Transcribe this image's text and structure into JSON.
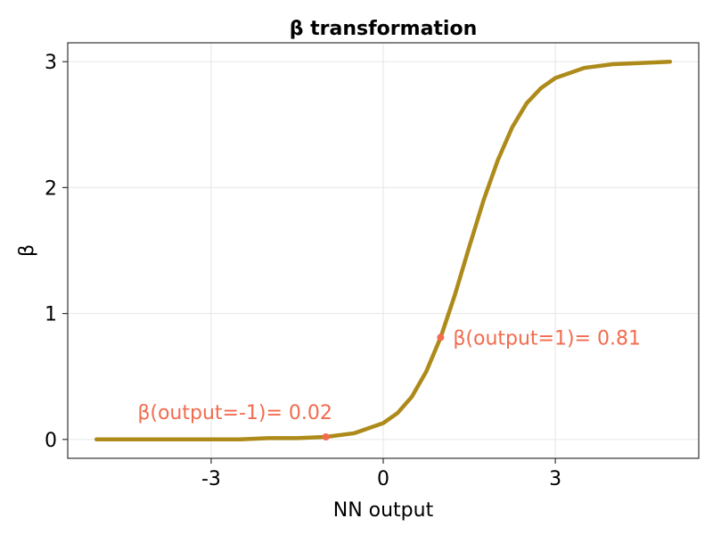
{
  "chart_data": {
    "type": "line",
    "title": "β transformation",
    "xlabel": "NN output",
    "ylabel": "β",
    "xlim": [
      -5.5,
      5.5
    ],
    "ylim": [
      -0.15,
      3.15
    ],
    "xticks": [
      -3,
      0,
      3
    ],
    "xtick_labels": [
      "-3",
      "0",
      "3"
    ],
    "yticks": [
      0,
      1,
      2,
      3
    ],
    "ytick_labels": [
      "0",
      "1",
      "2",
      "3"
    ],
    "grid": true,
    "series": [
      {
        "color": "#ad8a1a",
        "x": [
          -5,
          -4.5,
          -4,
          -3.5,
          -3,
          -2.5,
          -2,
          -1.5,
          -1,
          -0.5,
          0,
          0.25,
          0.5,
          0.75,
          1,
          1.25,
          1.5,
          1.75,
          2,
          2.25,
          2.5,
          2.75,
          3,
          3.5,
          4,
          4.5,
          5
        ],
        "y": [
          0.0,
          0.0,
          0.0,
          0.0,
          0.0,
          0.0,
          0.01,
          0.01,
          0.02,
          0.05,
          0.13,
          0.21,
          0.34,
          0.54,
          0.81,
          1.15,
          1.53,
          1.9,
          2.22,
          2.48,
          2.67,
          2.79,
          2.87,
          2.95,
          2.98,
          2.99,
          3.0
        ]
      }
    ],
    "annotations": [
      {
        "x": -1,
        "y": 0.02,
        "text": "β(output=-1)= 0.02",
        "color": "#f26b4e"
      },
      {
        "x": 1,
        "y": 0.81,
        "text": "β(output=1)= 0.81",
        "color": "#f26b4e"
      }
    ]
  }
}
